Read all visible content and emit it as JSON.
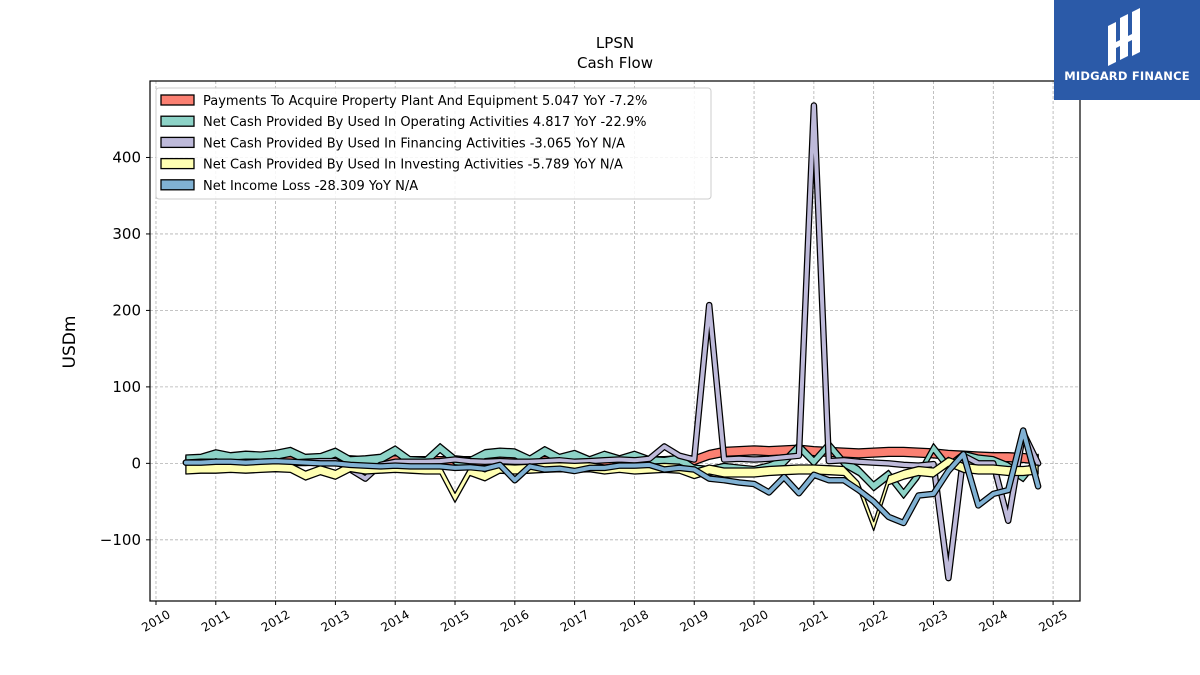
{
  "brand": {
    "name": "MIDGARD FINANCE",
    "bg_color": "#2b5aa8"
  },
  "chart_data": {
    "type": "line",
    "title": "LPSN",
    "subtitle": "Cash Flow",
    "ylabel": "USDm",
    "xlabel": "",
    "xlim": [
      2009.9,
      2025.45
    ],
    "ylim": [
      -180,
      500
    ],
    "x_ticks": [
      "2010",
      "2011",
      "2012",
      "2013",
      "2014",
      "2015",
      "2016",
      "2017",
      "2018",
      "2019",
      "2020",
      "2021",
      "2022",
      "2023",
      "2024",
      "2025"
    ],
    "y_ticks": [
      -100,
      0,
      100,
      200,
      300,
      400
    ],
    "y_tick_labels": [
      "−100",
      "0",
      "100",
      "200",
      "300",
      "400"
    ],
    "grid": true,
    "legend_position": "top-left",
    "series": [
      {
        "name": "Payments To Acquire Property Plant And Equipment",
        "legend": "Payments To Acquire Property Plant And Equipment  5.047 YoY -7.2%",
        "color": "#fb8072",
        "band": true,
        "x": [
          2010.5,
          2010.75,
          2011.0,
          2011.25,
          2011.5,
          2011.75,
          2012.0,
          2012.25,
          2012.5,
          2012.75,
          2013.0,
          2013.25,
          2013.5,
          2013.75,
          2014.0,
          2014.25,
          2014.5,
          2014.75,
          2015.0,
          2015.25,
          2015.5,
          2015.75,
          2016.0,
          2016.25,
          2016.5,
          2016.75,
          2017.0,
          2017.25,
          2017.5,
          2017.75,
          2018.0,
          2018.25,
          2018.5,
          2018.75,
          2019.0,
          2019.25,
          2019.5,
          2019.75,
          2020.0,
          2020.25,
          2020.5,
          2020.75,
          2021.0,
          2021.25,
          2021.5,
          2021.75,
          2022.0,
          2022.25,
          2022.5,
          2022.75,
          2023.0,
          2023.25,
          2023.5,
          2023.75,
          2024.0,
          2024.25,
          2024.5,
          2024.75
        ],
        "values": [
          3,
          3,
          4,
          3,
          3,
          4,
          4,
          3,
          3,
          4,
          4,
          4,
          3,
          4,
          4,
          3,
          3,
          3,
          3,
          3,
          3,
          3,
          3,
          3,
          3,
          3,
          3,
          3,
          3,
          3,
          3,
          3,
          3,
          4,
          4,
          11,
          15,
          16,
          17,
          16,
          17,
          18,
          16,
          15,
          14,
          13,
          14,
          15,
          15,
          14,
          13,
          11,
          10,
          9,
          8,
          8,
          7,
          5
        ]
      },
      {
        "name": "Net Cash Provided By Used In Operating Activities",
        "legend": "Net Cash Provided By Used In Operating Activities  4.817 YoY -22.9%",
        "color": "#8dd3c7",
        "band": true,
        "x": [
          2010.5,
          2010.75,
          2011.0,
          2011.25,
          2011.5,
          2011.75,
          2012.0,
          2012.25,
          2012.5,
          2012.75,
          2013.0,
          2013.25,
          2013.5,
          2013.75,
          2014.0,
          2014.25,
          2014.5,
          2014.75,
          2015.0,
          2015.25,
          2015.5,
          2015.75,
          2016.0,
          2016.25,
          2016.5,
          2016.75,
          2017.0,
          2017.25,
          2017.5,
          2017.75,
          2018.0,
          2018.25,
          2018.5,
          2018.75,
          2019.0,
          2019.25,
          2019.5,
          2019.75,
          2020.0,
          2020.25,
          2020.5,
          2020.75,
          2021.0,
          2021.25,
          2021.5,
          2021.75,
          2022.0,
          2022.25,
          2022.5,
          2022.75,
          2023.0,
          2023.25,
          2023.5,
          2023.75,
          2024.0,
          2024.25,
          2024.5,
          2024.75
        ],
        "values": [
          5,
          6,
          12,
          8,
          10,
          9,
          11,
          15,
          6,
          7,
          14,
          3,
          4,
          6,
          17,
          3,
          2,
          20,
          4,
          2,
          12,
          14,
          13,
          4,
          16,
          6,
          11,
          3,
          10,
          4,
          10,
          3,
          2,
          5,
          -8,
          -10,
          -6,
          -8,
          -10,
          -5,
          2,
          22,
          2,
          24,
          1,
          -10,
          -30,
          -15,
          -40,
          -15,
          20,
          -5,
          10,
          5,
          3,
          -5,
          -18,
          6
        ]
      },
      {
        "name": "Net Cash Provided By Used In Financing Activities",
        "legend": "Net Cash Provided By Used In Financing Activities  -3.065 YoY N/A",
        "color": "#bebada",
        "band": false,
        "x": [
          2010.5,
          2010.75,
          2011.0,
          2011.25,
          2011.5,
          2011.75,
          2012.0,
          2012.25,
          2012.5,
          2012.75,
          2013.0,
          2013.25,
          2013.5,
          2013.75,
          2014.0,
          2014.25,
          2014.5,
          2014.75,
          2015.0,
          2015.25,
          2015.5,
          2015.75,
          2016.0,
          2016.25,
          2016.5,
          2016.75,
          2017.0,
          2017.25,
          2017.5,
          2017.75,
          2018.0,
          2018.25,
          2018.5,
          2018.75,
          2019.0,
          2019.25,
          2019.5,
          2019.75,
          2020.0,
          2020.25,
          2020.5,
          2020.75,
          2021.0,
          2021.25,
          2021.5,
          2021.75,
          2022.0,
          2022.25,
          2022.5,
          2022.75,
          2023.0,
          2023.25,
          2023.5,
          2023.75,
          2024.0,
          2024.25,
          2024.5,
          2024.75
        ],
        "values": [
          1,
          2,
          2,
          1,
          2,
          2,
          3,
          1,
          2,
          3,
          3,
          -8,
          -20,
          -2,
          2,
          2,
          2,
          3,
          5,
          3,
          2,
          3,
          2,
          2,
          3,
          4,
          2,
          3,
          4,
          5,
          4,
          6,
          22,
          10,
          5,
          207,
          5,
          6,
          5,
          6,
          8,
          10,
          468,
          3,
          4,
          2,
          1,
          0,
          -2,
          -3,
          -1,
          -150,
          10,
          0,
          0,
          -75,
          40,
          0
        ]
      },
      {
        "name": "Net Cash Provided By Used In Investing Activities",
        "legend": "Net Cash Provided By Used In Investing Activities  -5.789 YoY N/A",
        "color": "#ffffb3",
        "band": true,
        "x": [
          2010.5,
          2010.75,
          2011.0,
          2011.25,
          2011.5,
          2011.75,
          2012.0,
          2012.25,
          2012.5,
          2012.75,
          2013.0,
          2013.25,
          2013.5,
          2013.75,
          2014.0,
          2014.25,
          2014.5,
          2014.75,
          2015.0,
          2015.25,
          2015.5,
          2015.75,
          2016.0,
          2016.25,
          2016.5,
          2016.75,
          2017.0,
          2017.25,
          2017.5,
          2017.75,
          2018.0,
          2018.25,
          2018.5,
          2018.75,
          2019.0,
          2019.25,
          2019.5,
          2019.75,
          2020.0,
          2020.25,
          2020.5,
          2020.75,
          2021.0,
          2021.25,
          2021.5,
          2021.75,
          2022.0,
          2022.25,
          2022.5,
          2022.75,
          2023.0,
          2023.25,
          2023.5,
          2023.75,
          2024.0,
          2024.25,
          2024.5,
          2024.75
        ],
        "values": [
          -8,
          -7,
          -7,
          -6,
          -7,
          -6,
          -5,
          -6,
          -16,
          -9,
          -15,
          -5,
          -8,
          -7,
          -6,
          -7,
          -8,
          -8,
          -45,
          -10,
          -17,
          -7,
          -8,
          -7,
          -6,
          -5,
          -6,
          -5,
          -8,
          -6,
          -8,
          -7,
          -6,
          -7,
          -14,
          -8,
          -12,
          -12,
          -12,
          -10,
          -9,
          -8,
          -8,
          -9,
          -10,
          -30,
          -82,
          -22,
          -15,
          -10,
          -12,
          2,
          -6,
          -8,
          -8,
          -10,
          -10,
          -8
        ]
      },
      {
        "name": "Net Income Loss",
        "legend": "Net Income Loss  -28.309 YoY N/A",
        "color": "#80b1d3",
        "band": false,
        "x": [
          2010.5,
          2010.75,
          2011.0,
          2011.25,
          2011.5,
          2011.75,
          2012.0,
          2012.25,
          2012.5,
          2012.75,
          2013.0,
          2013.25,
          2013.5,
          2013.75,
          2014.0,
          2014.25,
          2014.5,
          2014.75,
          2015.0,
          2015.25,
          2015.5,
          2015.75,
          2016.0,
          2016.25,
          2016.5,
          2016.75,
          2017.0,
          2017.25,
          2017.5,
          2017.75,
          2018.0,
          2018.25,
          2018.5,
          2018.75,
          2019.0,
          2019.25,
          2019.5,
          2019.75,
          2020.0,
          2020.25,
          2020.5,
          2020.75,
          2021.0,
          2021.25,
          2021.5,
          2021.75,
          2022.0,
          2022.25,
          2022.5,
          2022.75,
          2023.0,
          2023.25,
          2023.5,
          2023.75,
          2024.0,
          2024.25,
          2024.5,
          2024.75
        ],
        "values": [
          1,
          1,
          2,
          2,
          1,
          2,
          3,
          2,
          1,
          0,
          0,
          -2,
          -3,
          -4,
          -3,
          -4,
          -4,
          -4,
          -6,
          -5,
          -7,
          -2,
          -22,
          -4,
          -8,
          -7,
          -10,
          -6,
          -6,
          -3,
          -3,
          -2,
          -8,
          -6,
          -8,
          -20,
          -22,
          -25,
          -27,
          -38,
          -18,
          -39,
          -15,
          -22,
          -22,
          -35,
          -50,
          -70,
          -78,
          -42,
          -40,
          -10,
          12,
          -55,
          -40,
          -35,
          43,
          -30
        ]
      }
    ]
  }
}
